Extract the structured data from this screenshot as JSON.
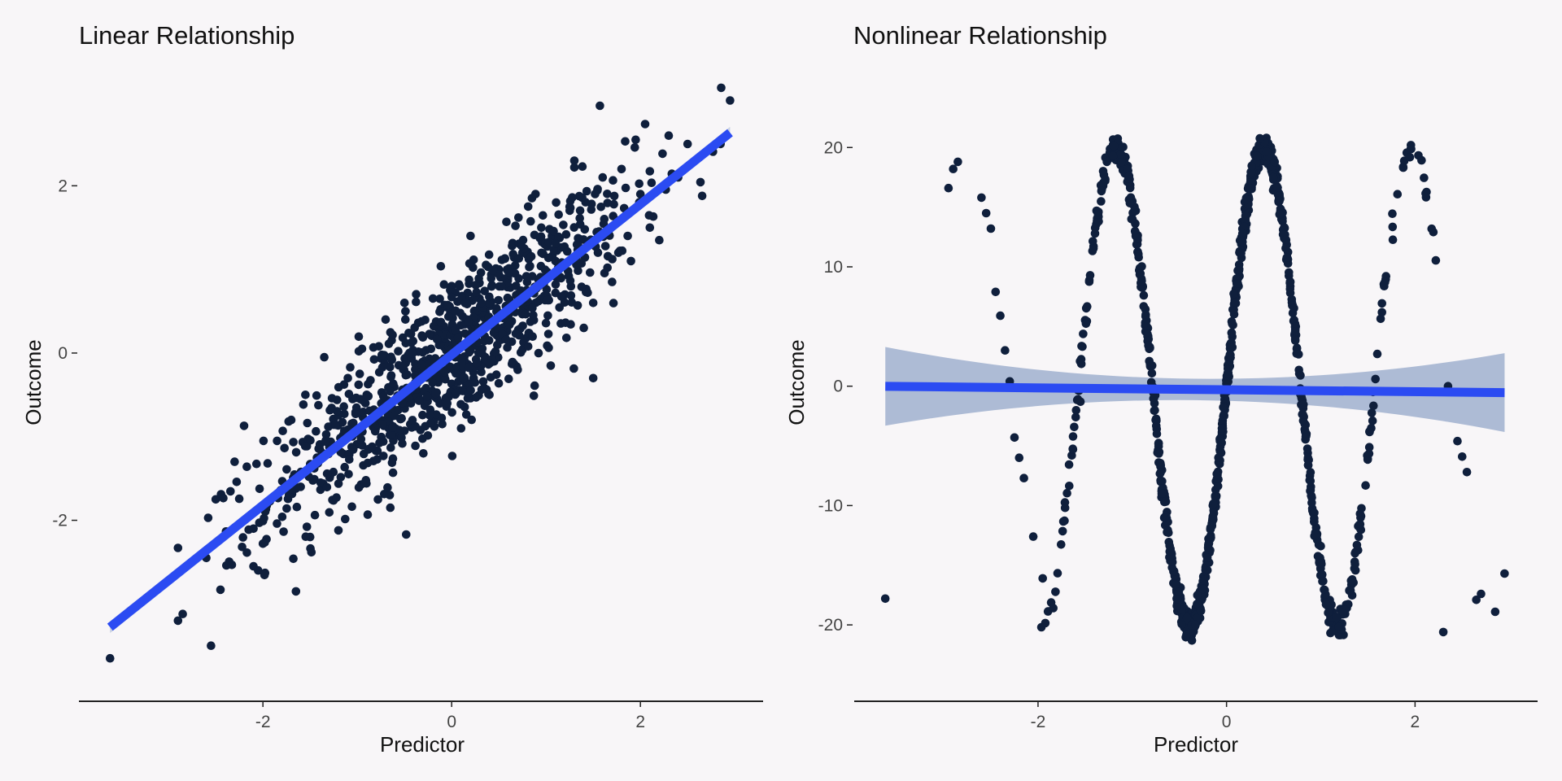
{
  "colors": {
    "background": "#f8f6f8",
    "points": "#0f1f3c",
    "fit_line": "#2b4bf2",
    "ribbon": "#a9b7d3",
    "axis": "#222222",
    "tick_text": "#444444"
  },
  "chart_data": [
    {
      "type": "scatter",
      "title": "Linear Relationship",
      "xlabel": "Predictor",
      "ylabel": "Outcome",
      "xlim": [
        -3.95,
        3.3
      ],
      "ylim": [
        -3.95,
        3.2
      ],
      "xticks": [
        -2,
        0,
        2
      ],
      "yticks": [
        -2,
        0,
        2
      ],
      "grid": false,
      "legend": "none",
      "points_description": "approx. 1000 points, y ≈ 0.9·x + noise(sd ≈ 0.45)",
      "points": [
        [
          -3.62,
          -3.65
        ],
        [
          -2.55,
          -3.5
        ],
        [
          -2.9,
          -3.2
        ],
        [
          -2.85,
          -3.12
        ],
        [
          -2.9,
          -2.33
        ],
        [
          -2.6,
          -2.45
        ],
        [
          -2.45,
          -2.83
        ],
        [
          -2.1,
          -2.55
        ],
        [
          -2.05,
          -2.6
        ],
        [
          -1.65,
          -2.85
        ],
        [
          -2.0,
          -2.28
        ],
        [
          -1.2,
          -2.12
        ],
        [
          -0.65,
          -1.85
        ],
        [
          -1.5,
          -2.2
        ],
        [
          -2.3,
          -1.3
        ],
        [
          -2.2,
          -0.87
        ],
        [
          -2.58,
          -1.97
        ],
        [
          -2.5,
          -1.75
        ],
        [
          -1.95,
          -1.32
        ],
        [
          -1.25,
          -0.8
        ],
        [
          -1.05,
          -0.55
        ],
        [
          -0.9,
          -0.5
        ],
        [
          -0.6,
          -0.95
        ],
        [
          0.1,
          -0.9
        ],
        [
          -0.3,
          -1.2
        ],
        [
          0.4,
          -0.5
        ],
        [
          0.7,
          -0.2
        ],
        [
          1.2,
          0.7
        ],
        [
          1.4,
          0.3
        ],
        [
          1.5,
          0.6
        ],
        [
          1.7,
          0.85
        ],
        [
          1.9,
          1.1
        ],
        [
          2.0,
          1.9
        ],
        [
          2.1,
          1.5
        ],
        [
          2.2,
          1.35
        ],
        [
          2.4,
          2.1
        ],
        [
          2.5,
          2.5
        ],
        [
          2.95,
          3.02
        ],
        [
          2.3,
          2.6
        ],
        [
          1.95,
          2.55
        ],
        [
          1.8,
          2.2
        ],
        [
          1.6,
          2.1
        ],
        [
          1.3,
          2.3
        ],
        [
          1.25,
          1.75
        ],
        [
          0.95,
          1.5
        ],
        [
          0.75,
          1.2
        ],
        [
          0.5,
          1.0
        ],
        [
          0.2,
          1.4
        ],
        [
          0.0,
          0.8
        ],
        [
          -0.1,
          0.3
        ],
        [
          -0.5,
          0.6
        ],
        [
          -0.7,
          0.4
        ],
        [
          -0.95,
          0.05
        ],
        [
          -1.1,
          -0.3
        ],
        [
          -1.35,
          -0.05
        ],
        [
          -1.55,
          -0.5
        ],
        [
          -1.7,
          -0.8
        ],
        [
          -1.85,
          -1.05
        ],
        [
          1.05,
          -0.15
        ],
        [
          0.35,
          0.2
        ],
        [
          -0.25,
          -0.2
        ],
        [
          0.6,
          0.45
        ],
        [
          1.1,
          1.1
        ],
        [
          -0.45,
          -0.55
        ],
        [
          -0.8,
          -0.75
        ],
        [
          0.85,
          0.75
        ],
        [
          1.55,
          1.2
        ],
        [
          -1.6,
          -1.6
        ],
        [
          -2.1,
          -2.1
        ],
        [
          1.5,
          -0.3
        ],
        [
          -0.1,
          -0.85
        ],
        [
          0.45,
          -0.1
        ]
      ]
    },
    {
      "type": "scatter",
      "title": "Nonlinear Relationship",
      "xlabel": "Predictor",
      "ylabel": "Outcome",
      "xlim": [
        -3.95,
        3.3
      ],
      "ylim": [
        -24.9,
        25.2
      ],
      "xticks": [
        -2,
        0,
        2
      ],
      "yticks": [
        -20,
        -10,
        0,
        10,
        20
      ],
      "grid": false,
      "legend": "none",
      "points_description": "approx. 1000 points following y ≈ 20·sin(4x), very small noise",
      "points": [
        [
          -3.62,
          -17.8
        ],
        [
          -2.95,
          16.6
        ],
        [
          -2.9,
          18.2
        ],
        [
          -2.85,
          18.8
        ],
        [
          -2.6,
          15.8
        ],
        [
          -2.55,
          14.5
        ],
        [
          -2.5,
          13.2
        ],
        [
          -2.45,
          7.9
        ],
        [
          -2.4,
          5.9
        ],
        [
          -2.35,
          3.0
        ],
        [
          -2.3,
          0.4
        ],
        [
          -2.25,
          -4.3
        ],
        [
          -2.2,
          -6.0
        ],
        [
          -2.15,
          -7.7
        ],
        [
          -2.05,
          -12.6
        ],
        [
          -1.95,
          -16.1
        ],
        [
          2.3,
          -20.6
        ],
        [
          2.45,
          -4.6
        ],
        [
          2.5,
          -5.9
        ],
        [
          2.55,
          -7.2
        ],
        [
          2.65,
          -17.9
        ],
        [
          2.7,
          -17.4
        ],
        [
          2.85,
          -18.9
        ],
        [
          2.95,
          -15.7
        ],
        [
          1.6,
          2.7
        ],
        [
          1.58,
          0.6
        ],
        [
          1.55,
          -2.9
        ],
        [
          2.35,
          0.0
        ],
        [
          1.0,
          -13.4
        ],
        [
          -1.6,
          -2.6
        ],
        [
          -1.55,
          -1.3
        ]
      ]
    }
  ],
  "fit": [
    {
      "x_range": [
        -3.62,
        2.95
      ],
      "intercept": -0.02,
      "slope": 0.9,
      "band_halfwidth": 0.07
    },
    {
      "x_range": [
        -3.62,
        2.95
      ],
      "intercept": -0.3,
      "slope": -0.08,
      "band_halfwidth_center": 0.9,
      "band_halfwidth_edge": 3.3
    }
  ]
}
